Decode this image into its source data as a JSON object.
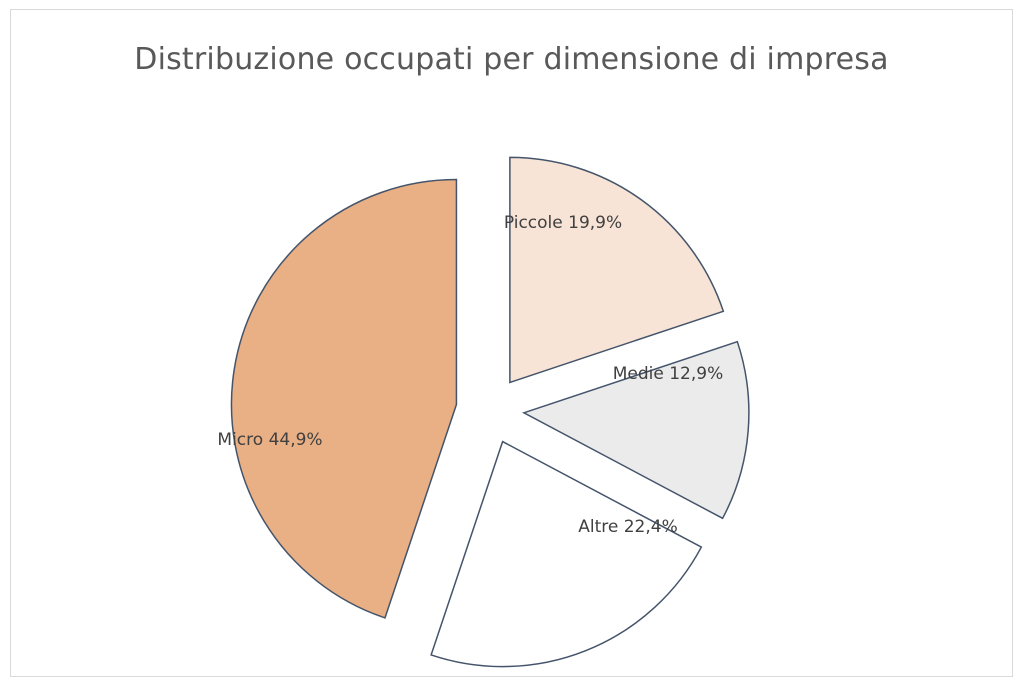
{
  "chart_data": {
    "type": "pie",
    "title": "Distribuzione occupati per dimensione di impresa",
    "labels": [
      "Micro",
      "Piccole",
      "Medie",
      "Altre"
    ],
    "values": [
      44.9,
      19.9,
      12.9,
      22.4
    ],
    "data_labels": [
      "Micro 44,9%",
      "Piccole 19,9%",
      "Medie 12,9%",
      "Altre 22,4%"
    ],
    "colors": [
      "#e9af85",
      "#f8e4d7",
      "#ebebeb",
      "#ffffff"
    ],
    "exploded": true,
    "legend": "none"
  }
}
